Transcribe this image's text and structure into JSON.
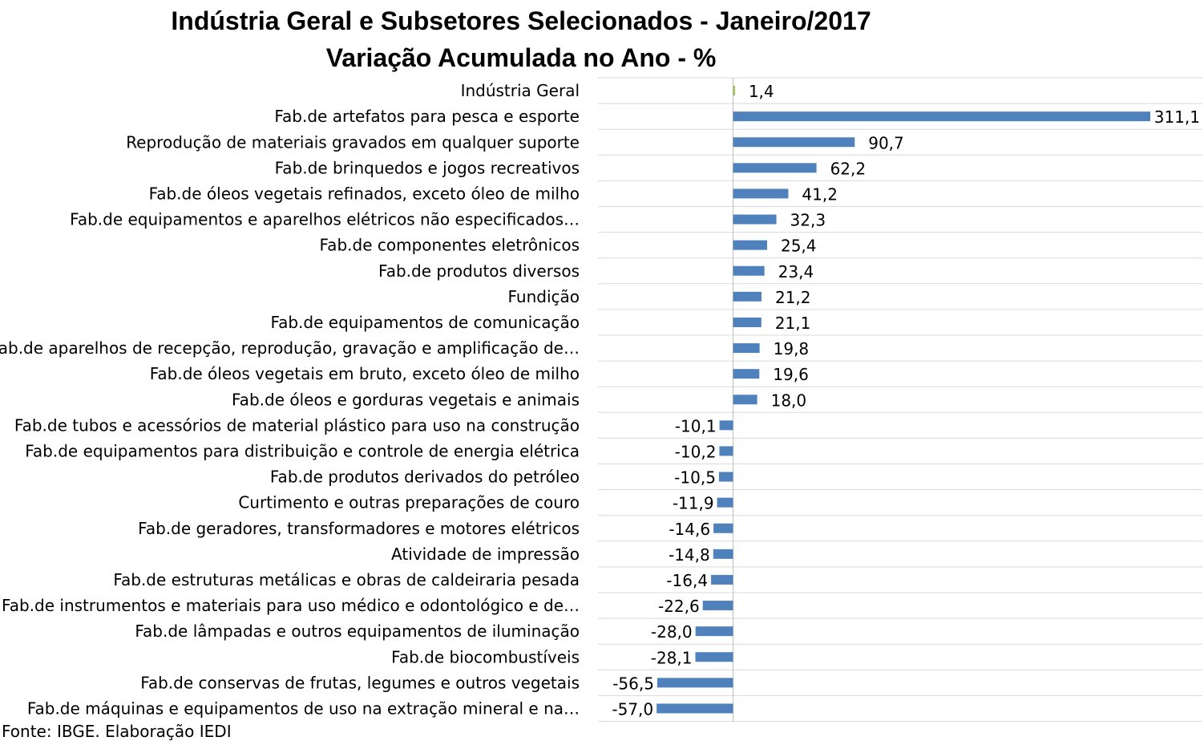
{
  "chart_data": {
    "type": "bar",
    "orientation": "horizontal",
    "title": "Indústria Geral e Subsetores Selecionados - Janeiro/2017",
    "subtitle": "Variação Acumulada no Ano - %",
    "categories": [
      "Indústria Geral",
      "Fab.de artefatos para pesca e esporte",
      "Reprodução de materiais gravados em qualquer suporte",
      "Fab.de brinquedos e jogos recreativos",
      "Fab.de óleos vegetais refinados, exceto óleo de milho",
      "Fab.de equipamentos e aparelhos elétricos não especificados…",
      "Fab.de componentes eletrônicos",
      "Fab.de produtos diversos",
      "Fundição",
      "Fab.de equipamentos de comunicação",
      "Fab.de aparelhos de recepção, reprodução, gravação e amplificação de…",
      "Fab.de óleos vegetais em bruto, exceto óleo de milho",
      "Fab.de óleos e gorduras vegetais e animais",
      "Fab.de tubos e acessórios de material plástico para uso na construção",
      "Fab.de equipamentos para distribuição e controle de energia elétrica",
      "Fab.de produtos derivados do petróleo",
      "Curtimento e outras preparações de couro",
      "Fab.de geradores, transformadores e motores elétricos",
      "Atividade de impressão",
      "Fab.de estruturas metálicas e obras de caldeiraria pesada",
      "Fab.de instrumentos e materiais para uso médico e odontológico e de…",
      "Fab.de lâmpadas e outros equipamentos de iluminação",
      "Fab.de biocombustíveis",
      "Fab.de conservas de frutas, legumes e outros vegetais",
      "Fab.de máquinas e equipamentos de uso na extração mineral e na…"
    ],
    "values": [
      1.4,
      311.1,
      90.7,
      62.2,
      41.2,
      32.3,
      25.4,
      23.4,
      21.2,
      21.1,
      19.8,
      19.6,
      18.0,
      -10.1,
      -10.2,
      -10.5,
      -11.9,
      -14.6,
      -14.8,
      -16.4,
      -22.6,
      -28.0,
      -28.1,
      -56.5,
      -57.0
    ],
    "labels": [
      "1,4",
      "311,1",
      "90,7",
      "62,2",
      "41,2",
      "32,3",
      "25,4",
      "23,4",
      "21,2",
      "21,1",
      "19,8",
      "19,6",
      "18,0",
      "-10,1",
      "-10,2",
      "-10,5",
      "-11,9",
      "-14,6",
      "-14,8",
      "-16,4",
      "-22,6",
      "-28,0",
      "-28,1",
      "-56,5",
      "-57,0"
    ],
    "xlim": [
      -80,
      340
    ],
    "grid": true,
    "colors": {
      "first_bar": "#9BBB59",
      "bars": "#4F81BD",
      "grid": "#D9D9D9"
    }
  },
  "source": "Fonte: IBGE. Elaboração IEDI"
}
